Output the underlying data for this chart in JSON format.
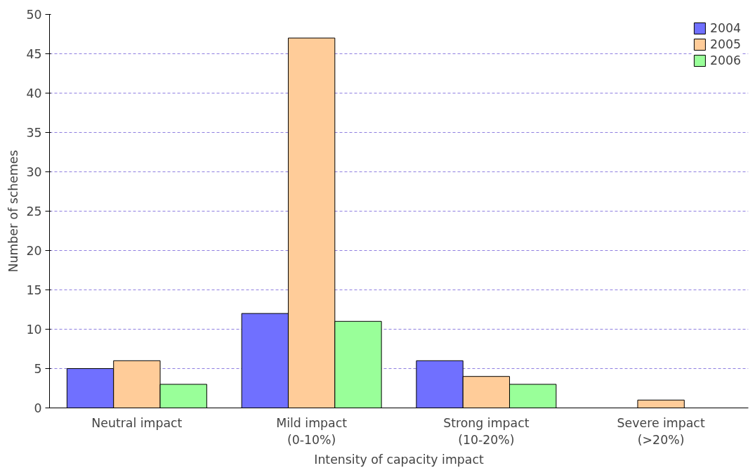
{
  "chart_data": {
    "type": "bar",
    "xlabel": "Intensity of capacity impact",
    "ylabel": "Number of schemes",
    "categories": [
      "Neutral impact",
      "Mild impact\n(0-10%)",
      "Strong impact\n(10-20%)",
      "Severe impact\n(>20%)"
    ],
    "series": [
      {
        "name": "2004",
        "color": "#7070ff",
        "values": [
          5,
          12,
          6,
          0
        ]
      },
      {
        "name": "2005",
        "color": "#ffcc99",
        "values": [
          6,
          47,
          4,
          1
        ]
      },
      {
        "name": "2006",
        "color": "#99ff99",
        "values": [
          3,
          11,
          3,
          0
        ]
      }
    ],
    "ylim": [
      0,
      50
    ],
    "yticks": [
      0,
      5,
      10,
      15,
      20,
      25,
      30,
      35,
      40,
      45,
      50
    ],
    "grid": "y",
    "legend": "top right"
  }
}
